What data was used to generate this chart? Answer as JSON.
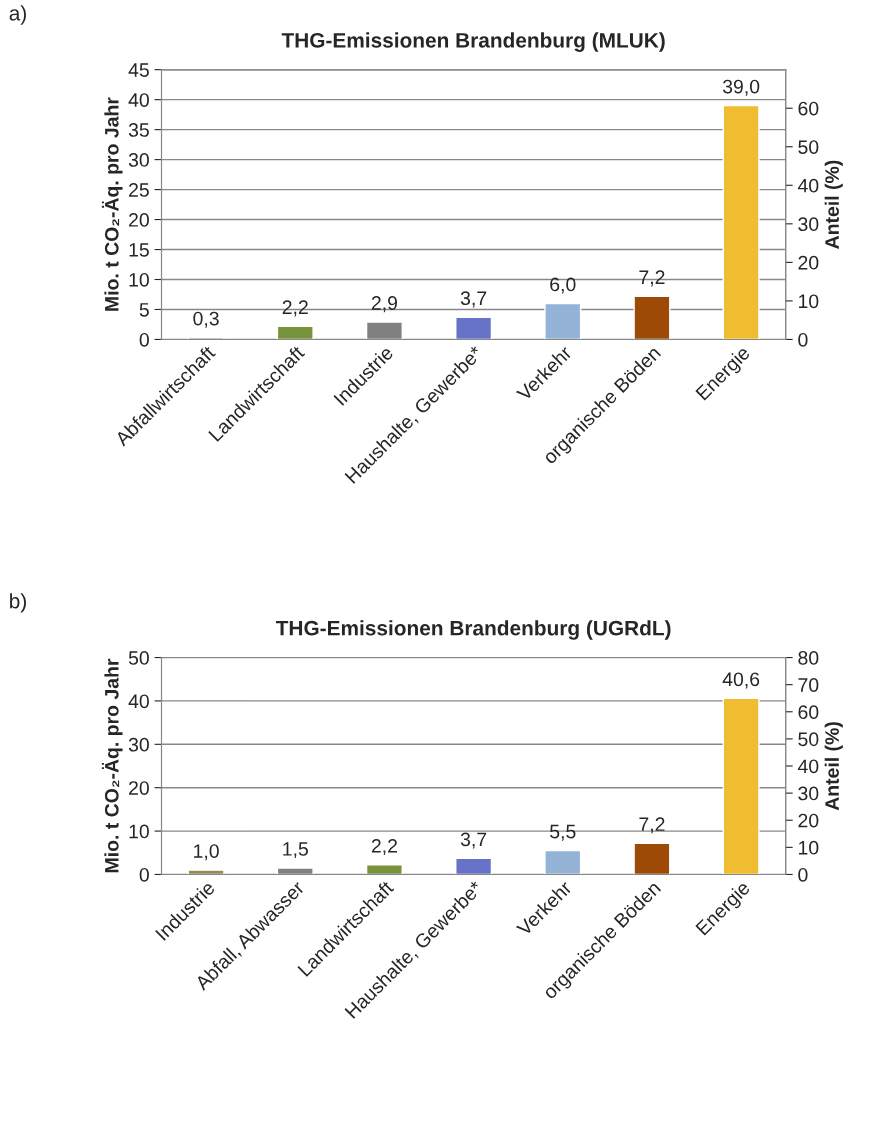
{
  "chart_data": [
    {
      "type": "bar",
      "title": "THG-Emissionen Brandenburg (MLUK)",
      "ylabel": "Mio. t CO₂-Äq. pro Jahr",
      "y2label": "Anteil (%)",
      "annotations": [
        "a)"
      ],
      "categories": [
        "Abfallwirtschaft",
        "Landwirtschaft",
        "Industrie",
        "Haushalte, Gewerbe*",
        "Verkehr",
        "organische Böden",
        "Energie"
      ],
      "values": [
        0.3,
        2.2,
        2.9,
        3.7,
        6.0,
        7.2,
        39.0
      ],
      "value_labels": [
        "0,3",
        "2,2",
        "2,9",
        "3,7",
        "6,0",
        "7,2",
        "39,0"
      ],
      "colors": [
        "#8c8c8c",
        "#77933c",
        "#808080",
        "#6673c8",
        "#95b3d7",
        "#9c4a06",
        "#f0bc30"
      ],
      "ylim": [
        0,
        45
      ],
      "yticks": [
        0,
        5,
        10,
        15,
        20,
        25,
        30,
        35,
        40,
        45
      ],
      "y2lim": [
        0,
        70
      ],
      "y2ticks": [
        0,
        10,
        20,
        30,
        40,
        50,
        60
      ],
      "grid": "y",
      "legend": false
    },
    {
      "type": "bar",
      "title": "THG-Emissionen Brandenburg (UGRdL)",
      "ylabel": "Mio. t CO₂-Äq. pro Jahr",
      "y2label": "Anteil (%)",
      "annotations": [
        "b)"
      ],
      "categories": [
        "Industrie",
        "Abfall, Abwasser",
        "Landwirtschaft",
        "Haushalte, Gewerbe*",
        "Verkehr",
        "organische Böden",
        "Energie"
      ],
      "values": [
        1.0,
        1.5,
        2.2,
        3.7,
        5.5,
        7.2,
        40.6
      ],
      "value_labels": [
        "1,0",
        "1,5",
        "2,2",
        "3,7",
        "5,5",
        "7,2",
        "40,6"
      ],
      "colors": [
        "#948a54",
        "#808080",
        "#77933c",
        "#6673c8",
        "#95b3d7",
        "#9c4a06",
        "#f0bc30"
      ],
      "ylim": [
        0,
        50
      ],
      "yticks": [
        0,
        10,
        20,
        30,
        40,
        50
      ],
      "y2lim": [
        0,
        80
      ],
      "y2ticks": [
        0,
        10,
        20,
        30,
        40,
        50,
        60,
        70,
        80
      ],
      "grid": "y",
      "legend": false
    }
  ]
}
